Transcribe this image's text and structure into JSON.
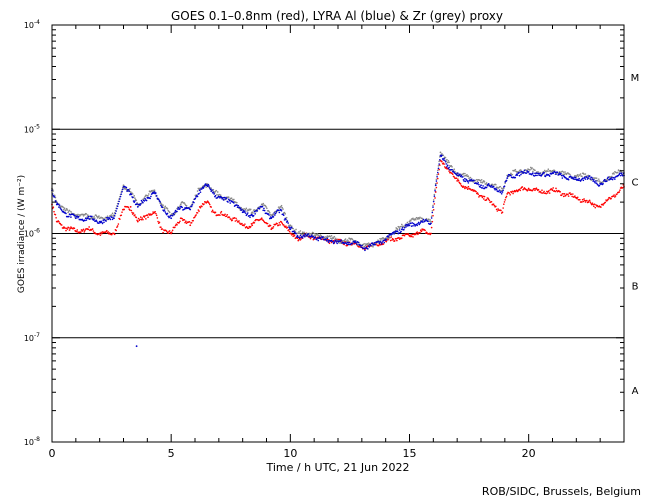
{
  "chart_data": {
    "type": "scatter",
    "title": "GOES 0.1–0.8nm (red), LYRA Al (blue) & Zr (grey) proxy",
    "xlabel": "Time / h UTC, 21 Jun 2022",
    "ylabel": "GOES irradiance / (W m⁻²)",
    "footer": "ROB/SIDC, Brussels, Belgium",
    "xlim": [
      0,
      24
    ],
    "ylim": [
      1e-08,
      0.0001
    ],
    "yscale": "log",
    "x_ticks": [
      {
        "value": 0,
        "label": "0"
      },
      {
        "value": 5,
        "label": "5"
      },
      {
        "value": 10,
        "label": "10"
      },
      {
        "value": 15,
        "label": "15"
      },
      {
        "value": 20,
        "label": "20"
      }
    ],
    "y_ticks": [
      {
        "exp": -8,
        "base": "10",
        "sup": "-8"
      },
      {
        "exp": -7,
        "base": "10",
        "sup": "-7"
      },
      {
        "exp": -6,
        "base": "10",
        "sup": "-6"
      },
      {
        "exp": -5,
        "base": "10",
        "sup": "-5"
      },
      {
        "exp": -4,
        "base": "10",
        "sup": "-4"
      }
    ],
    "flare_class_lines": [
      1e-07,
      1e-06,
      1e-05
    ],
    "flare_classes": [
      {
        "label": "A",
        "exp": -7.5
      },
      {
        "label": "B",
        "exp": -6.5
      },
      {
        "label": "C",
        "exp": -5.5
      },
      {
        "label": "M",
        "exp": -4.5
      }
    ],
    "colors": {
      "goes": "#ff0000",
      "lyra_al": "#0000cc",
      "lyra_zr": "#888888"
    },
    "series": [
      {
        "color": "#ff0000",
        "x": [
          0.0,
          0.2,
          0.5,
          1.0,
          1.5,
          2.0,
          2.6,
          3.0,
          3.3,
          3.6,
          4.0,
          4.3,
          4.6,
          5.0,
          5.4,
          5.8,
          6.2,
          6.5,
          6.8,
          7.2,
          7.6,
          8.0,
          8.4,
          8.8,
          9.2,
          9.6,
          10.0,
          10.3,
          10.7,
          11.2,
          11.7,
          12.2,
          12.7,
          13.1,
          13.5,
          14.0,
          14.5,
          15.0,
          15.5,
          15.9,
          16.1,
          16.3,
          16.6,
          17.0,
          17.5,
          18.0,
          18.5,
          18.9,
          19.1,
          19.5,
          20.0,
          20.5,
          21.0,
          21.5,
          22.0,
          22.5,
          23.0,
          23.4,
          23.8,
          24.0
        ],
        "y": [
          1.9e-06,
          1.3e-06,
          1.15e-06,
          1.05e-06,
          1.1e-06,
          1e-06,
          1e-06,
          1.7e-06,
          1.8e-06,
          1.3e-06,
          1.5e-06,
          1.6e-06,
          1.1e-06,
          1e-06,
          1.4e-06,
          1.2e-06,
          1.8e-06,
          2e-06,
          1.6e-06,
          1.5e-06,
          1.4e-06,
          1.2e-06,
          1.2e-06,
          1.4e-06,
          1.1e-06,
          1.3e-06,
          1e-06,
          9e-07,
          9.5e-07,
          9e-07,
          8.5e-07,
          8.2e-07,
          8e-07,
          7.2e-07,
          7.8e-07,
          8.5e-07,
          9e-07,
          9.5e-07,
          1.05e-06,
          1e-06,
          2.5e-06,
          5e-06,
          4.2e-06,
          3.2e-06,
          2.7e-06,
          2.3e-06,
          1.9e-06,
          1.6e-06,
          2.4e-06,
          2.6e-06,
          2.7e-06,
          2.5e-06,
          2.6e-06,
          2.4e-06,
          2.2e-06,
          2e-06,
          1.8e-06,
          2.2e-06,
          2.5e-06,
          2.8e-06
        ]
      },
      {
        "color": "#888888",
        "x": [
          0.0,
          0.2,
          0.5,
          1.0,
          1.5,
          2.0,
          2.6,
          3.0,
          3.3,
          3.6,
          4.0,
          4.3,
          4.6,
          5.0,
          5.4,
          5.8,
          6.2,
          6.5,
          6.8,
          7.2,
          7.6,
          8.0,
          8.4,
          8.8,
          9.2,
          9.6,
          10.0,
          10.3,
          10.7,
          11.2,
          11.7,
          12.2,
          12.7,
          13.1,
          13.5,
          14.0,
          14.5,
          15.0,
          15.5,
          15.9,
          16.1,
          16.3,
          16.6,
          17.0,
          17.5,
          18.0,
          18.5,
          18.9,
          19.1,
          19.5,
          20.0,
          20.5,
          21.0,
          21.5,
          22.0,
          22.5,
          23.0,
          23.4,
          23.8,
          24.0
        ],
        "y": [
          2.7e-06,
          2e-06,
          1.7e-06,
          1.5e-06,
          1.5e-06,
          1.4e-06,
          1.5e-06,
          2.9e-06,
          2.5e-06,
          1.9e-06,
          2.3e-06,
          2.6e-06,
          1.9e-06,
          1.5e-06,
          1.9e-06,
          1.8e-06,
          2.7e-06,
          3e-06,
          2.5e-06,
          2.2e-06,
          2.1e-06,
          1.7e-06,
          1.6e-06,
          1.9e-06,
          1.5e-06,
          1.8e-06,
          1.2e-06,
          1e-06,
          1e-06,
          9.5e-07,
          9e-07,
          8.5e-07,
          8.5e-07,
          7.5e-07,
          8e-07,
          9e-07,
          1.1e-06,
          1.3e-06,
          1.4e-06,
          1.3e-06,
          3e-06,
          6e-06,
          4.8e-06,
          3.8e-06,
          3.4e-06,
          3.1e-06,
          2.9e-06,
          2.6e-06,
          3.6e-06,
          3.9e-06,
          4.1e-06,
          3.8e-06,
          4e-06,
          3.7e-06,
          3.5e-06,
          3.6e-06,
          3.1e-06,
          3.5e-06,
          4e-06,
          3.8e-06
        ]
      },
      {
        "color": "#0000cc",
        "x": [
          0.0,
          0.2,
          0.5,
          1.0,
          1.5,
          2.0,
          2.6,
          3.0,
          3.3,
          3.6,
          4.0,
          4.3,
          4.6,
          5.0,
          5.4,
          5.8,
          6.2,
          6.5,
          6.8,
          7.2,
          7.6,
          8.0,
          8.4,
          8.8,
          9.2,
          9.6,
          10.0,
          10.3,
          10.7,
          11.2,
          11.7,
          12.2,
          12.7,
          13.1,
          13.5,
          14.0,
          14.5,
          15.0,
          15.5,
          15.9,
          16.1,
          16.3,
          16.6,
          17.0,
          17.5,
          18.0,
          18.5,
          18.9,
          19.1,
          19.5,
          20.0,
          20.5,
          21.0,
          21.5,
          22.0,
          22.5,
          23.0,
          23.4,
          23.8,
          24.0
        ],
        "y": [
          2.6e-06,
          1.9e-06,
          1.6e-06,
          1.4e-06,
          1.4e-06,
          1.3e-06,
          1.4e-06,
          2.8e-06,
          2.4e-06,
          1.8e-06,
          2.2e-06,
          2.5e-06,
          1.8e-06,
          1.4e-06,
          1.8e-06,
          1.7e-06,
          2.6e-06,
          2.9e-06,
          2.4e-06,
          2.1e-06,
          2e-06,
          1.6e-06,
          1.5e-06,
          1.8e-06,
          1.4e-06,
          1.7e-06,
          1.1e-06,
          9.5e-07,
          9.5e-07,
          9e-07,
          8.5e-07,
          8.2e-07,
          8.2e-07,
          7.2e-07,
          7.8e-07,
          8.8e-07,
          1.05e-06,
          1.2e-06,
          1.3e-06,
          1.25e-06,
          2.9e-06,
          5.6e-06,
          4.5e-06,
          3.6e-06,
          3.2e-06,
          2.9e-06,
          2.8e-06,
          2.5e-06,
          3.4e-06,
          3.7e-06,
          3.9e-06,
          3.6e-06,
          3.8e-06,
          3.5e-06,
          3.3e-06,
          3.4e-06,
          3e-06,
          3.3e-06,
          3.7e-06,
          3.6e-06
        ]
      }
    ],
    "outlier_points": [
      {
        "x": 3.55,
        "y": 8.3e-08
      }
    ]
  }
}
